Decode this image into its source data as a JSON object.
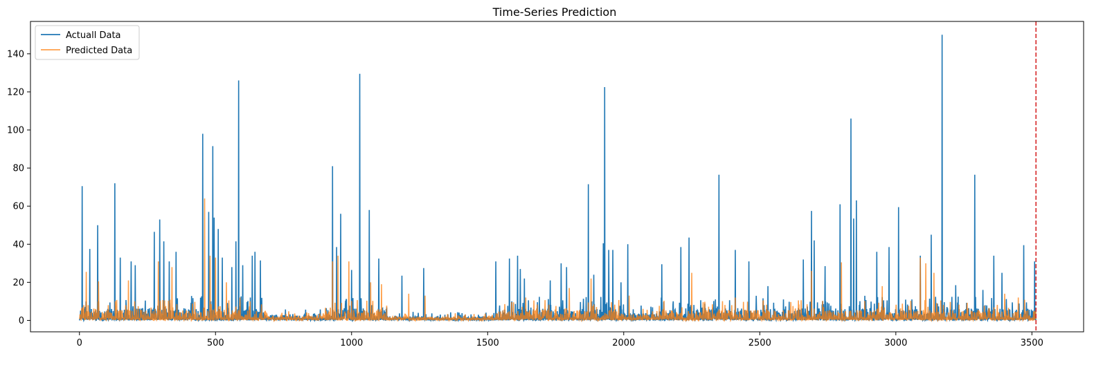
{
  "chart_data": {
    "type": "line",
    "title": "Time-Series Prediction",
    "xlabel": "",
    "ylabel": "",
    "xlim": [
      -180,
      3690
    ],
    "ylim": [
      -6,
      157
    ],
    "x_ticks": [
      0,
      500,
      1000,
      1500,
      2000,
      2500,
      3000,
      3500
    ],
    "y_ticks": [
      0,
      20,
      40,
      60,
      80,
      100,
      120,
      140
    ],
    "grid": false,
    "legend_position": "top-left",
    "vline": {
      "x": 3515,
      "color": "#d62728",
      "style": "dashed"
    },
    "series": [
      {
        "name": "Actuall Data",
        "color": "#1f77b4",
        "peaks": [
          [
            10,
            70.5
          ],
          [
            38,
            37.5
          ],
          [
            67,
            50
          ],
          [
            130,
            72
          ],
          [
            150,
            33
          ],
          [
            190,
            31
          ],
          [
            205,
            29
          ],
          [
            275,
            46.5
          ],
          [
            295,
            53
          ],
          [
            310,
            41.5
          ],
          [
            330,
            31
          ],
          [
            355,
            36
          ],
          [
            453,
            98
          ],
          [
            475,
            57
          ],
          [
            490,
            91.5
          ],
          [
            495,
            54
          ],
          [
            510,
            48
          ],
          [
            525,
            33
          ],
          [
            560,
            28
          ],
          [
            575,
            41.5
          ],
          [
            585,
            126
          ],
          [
            600,
            29
          ],
          [
            635,
            34
          ],
          [
            645,
            36
          ],
          [
            665,
            31.5
          ],
          [
            930,
            81
          ],
          [
            945,
            38.5
          ],
          [
            960,
            56
          ],
          [
            1000,
            26.5
          ],
          [
            1030,
            129.5
          ],
          [
            1065,
            58
          ],
          [
            1100,
            32.5
          ],
          [
            1185,
            23.5
          ],
          [
            1265,
            27.5
          ],
          [
            1530,
            31
          ],
          [
            1580,
            32.5
          ],
          [
            1610,
            34
          ],
          [
            1620,
            27
          ],
          [
            1635,
            22
          ],
          [
            1730,
            21
          ],
          [
            1770,
            30
          ],
          [
            1790,
            28
          ],
          [
            1870,
            71.5
          ],
          [
            1890,
            24
          ],
          [
            1925,
            40.5
          ],
          [
            1930,
            122.5
          ],
          [
            1945,
            37
          ],
          [
            1960,
            37
          ],
          [
            1990,
            20
          ],
          [
            2015,
            40
          ],
          [
            2140,
            29.5
          ],
          [
            2210,
            38.5
          ],
          [
            2240,
            43.5
          ],
          [
            2350,
            76.5
          ],
          [
            2410,
            37
          ],
          [
            2460,
            31
          ],
          [
            2530,
            18
          ],
          [
            2660,
            32
          ],
          [
            2690,
            57.5
          ],
          [
            2700,
            42
          ],
          [
            2740,
            28.5
          ],
          [
            2795,
            61
          ],
          [
            2835,
            106
          ],
          [
            2845,
            53.5
          ],
          [
            2855,
            63
          ],
          [
            2930,
            36
          ],
          [
            2975,
            38.5
          ],
          [
            3010,
            59.5
          ],
          [
            3090,
            34
          ],
          [
            3130,
            45
          ],
          [
            3170,
            150
          ],
          [
            3220,
            18.5
          ],
          [
            3290,
            76.5
          ],
          [
            3320,
            16
          ],
          [
            3360,
            34
          ],
          [
            3390,
            25
          ],
          [
            3470,
            39.5
          ],
          [
            3510,
            31
          ]
        ]
      },
      {
        "name": "Predicted Data",
        "color": "#ff7f0e",
        "peaks": [
          [
            25,
            25.5
          ],
          [
            70,
            20.5
          ],
          [
            180,
            21
          ],
          [
            290,
            31
          ],
          [
            340,
            28
          ],
          [
            460,
            64
          ],
          [
            480,
            34
          ],
          [
            500,
            33
          ],
          [
            540,
            20
          ],
          [
            590,
            12
          ],
          [
            930,
            31
          ],
          [
            950,
            34
          ],
          [
            990,
            31
          ],
          [
            1070,
            20
          ],
          [
            1110,
            19
          ],
          [
            1210,
            14
          ],
          [
            1270,
            13
          ],
          [
            1640,
            12
          ],
          [
            1800,
            17
          ],
          [
            1880,
            22
          ],
          [
            2020,
            13
          ],
          [
            2250,
            25
          ],
          [
            2410,
            12
          ],
          [
            2690,
            26
          ],
          [
            2800,
            30.5
          ],
          [
            2950,
            18
          ],
          [
            3090,
            33
          ],
          [
            3110,
            30
          ],
          [
            3140,
            25
          ],
          [
            3400,
            14
          ],
          [
            3450,
            12
          ]
        ]
      }
    ]
  }
}
